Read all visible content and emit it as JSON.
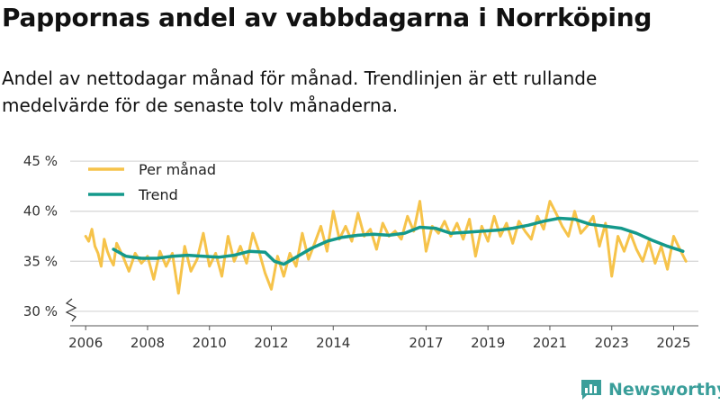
{
  "title": "Pappornas andel av vabbdagarna i Norrköping",
  "subtitle": "Andel av nettodagar månad för månad. Trendlinjen är ett rullande medelvärde för de senaste tolv månaderna.",
  "brand": "Newsworthy",
  "colors": {
    "monthly": "#f6c34a",
    "trend": "#14998b",
    "grid": "#d9d9d9",
    "brand": "#3a9e9a"
  },
  "chart_data": {
    "type": "line",
    "ylim": [
      29,
      46
    ],
    "y_ticks": [
      30,
      35,
      40,
      45
    ],
    "y_tick_labels": [
      "30 %",
      "35 %",
      "40 %",
      "45 %"
    ],
    "x_range": [
      2005.5,
      2025.8
    ],
    "x_ticks": [
      2006,
      2008,
      2010,
      2012,
      2014,
      2017,
      2019,
      2021,
      2023,
      2025
    ],
    "x_tick_labels": [
      "2006",
      "2008",
      "2010",
      "2012",
      "2014",
      "2017",
      "2019",
      "2021",
      "2023",
      "2025"
    ],
    "legend": {
      "placement": "top-left"
    },
    "series": [
      {
        "name": "Per månad",
        "x": [
          2006.0,
          2006.1,
          2006.2,
          2006.3,
          2006.4,
          2006.5,
          2006.6,
          2006.7,
          2006.8,
          2006.9,
          2007.0,
          2007.2,
          2007.4,
          2007.6,
          2007.8,
          2008.0,
          2008.2,
          2008.4,
          2008.6,
          2008.8,
          2009.0,
          2009.2,
          2009.4,
          2009.6,
          2009.8,
          2010.0,
          2010.2,
          2010.4,
          2010.6,
          2010.8,
          2011.0,
          2011.2,
          2011.4,
          2011.6,
          2011.8,
          2012.0,
          2012.2,
          2012.4,
          2012.6,
          2012.8,
          2013.0,
          2013.2,
          2013.4,
          2013.6,
          2013.8,
          2014.0,
          2014.2,
          2014.4,
          2014.6,
          2014.8,
          2015.0,
          2015.2,
          2015.4,
          2015.6,
          2015.8,
          2016.0,
          2016.2,
          2016.4,
          2016.6,
          2016.8,
          2017.0,
          2017.2,
          2017.4,
          2017.6,
          2017.8,
          2018.0,
          2018.2,
          2018.4,
          2018.6,
          2018.8,
          2019.0,
          2019.2,
          2019.4,
          2019.6,
          2019.8,
          2020.0,
          2020.2,
          2020.4,
          2020.6,
          2020.8,
          2021.0,
          2021.2,
          2021.4,
          2021.6,
          2021.8,
          2022.0,
          2022.2,
          2022.4,
          2022.6,
          2022.8,
          2023.0,
          2023.2,
          2023.4,
          2023.6,
          2023.8,
          2024.0,
          2024.2,
          2024.4,
          2024.6,
          2024.8,
          2025.0,
          2025.2,
          2025.4
        ],
        "values": [
          37.5,
          37.0,
          38.2,
          36.5,
          35.8,
          34.5,
          37.2,
          36.0,
          35.2,
          34.6,
          36.8,
          35.5,
          34.0,
          35.8,
          34.8,
          35.5,
          33.2,
          36.0,
          34.5,
          35.8,
          31.8,
          36.5,
          34.0,
          35.2,
          37.8,
          34.5,
          35.8,
          33.5,
          37.5,
          35.0,
          36.5,
          34.8,
          37.8,
          36.0,
          33.8,
          32.2,
          35.5,
          33.5,
          35.8,
          34.5,
          37.8,
          35.2,
          36.8,
          38.5,
          36.0,
          40.0,
          37.2,
          38.5,
          37.0,
          39.8,
          37.5,
          38.2,
          36.2,
          38.8,
          37.5,
          38.0,
          37.2,
          39.5,
          38.0,
          41.0,
          36.0,
          38.5,
          37.8,
          39.0,
          37.5,
          38.8,
          37.2,
          39.2,
          35.5,
          38.5,
          37.0,
          39.5,
          37.5,
          38.8,
          36.8,
          39.0,
          38.0,
          37.2,
          39.5,
          38.2,
          41.0,
          39.8,
          38.5,
          37.5,
          40.0,
          37.8,
          38.5,
          39.5,
          36.5,
          38.8,
          33.5,
          37.5,
          36.0,
          37.8,
          36.2,
          35.0,
          37.0,
          34.8,
          36.5,
          34.2,
          37.5,
          36.2,
          35.0
        ]
      },
      {
        "name": "Trend",
        "x": [
          2006.9,
          2007.3,
          2007.8,
          2008.3,
          2008.8,
          2009.3,
          2009.8,
          2010.3,
          2010.8,
          2011.3,
          2011.8,
          2012.1,
          2012.4,
          2012.8,
          2013.3,
          2013.8,
          2014.3,
          2014.8,
          2015.3,
          2015.8,
          2016.3,
          2016.8,
          2017.3,
          2017.8,
          2018.3,
          2018.8,
          2019.3,
          2019.8,
          2020.3,
          2020.8,
          2021.3,
          2021.8,
          2022.3,
          2022.8,
          2023.3,
          2023.8,
          2024.3,
          2024.8,
          2025.3
        ],
        "values": [
          36.2,
          35.5,
          35.3,
          35.3,
          35.5,
          35.6,
          35.5,
          35.4,
          35.6,
          36.0,
          35.9,
          35.0,
          34.7,
          35.4,
          36.3,
          37.0,
          37.4,
          37.6,
          37.7,
          37.6,
          37.8,
          38.4,
          38.3,
          37.8,
          37.9,
          38.0,
          38.1,
          38.3,
          38.6,
          39.0,
          39.3,
          39.2,
          38.7,
          38.5,
          38.3,
          37.8,
          37.1,
          36.5,
          36.0
        ]
      }
    ]
  }
}
